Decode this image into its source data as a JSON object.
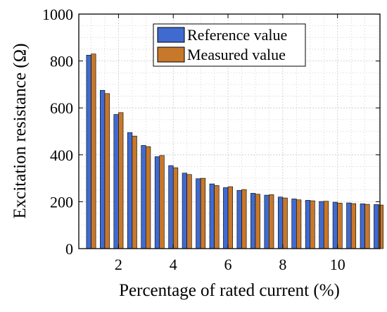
{
  "chart_data": {
    "type": "bar",
    "xlabel": "Percentage of rated current (%)",
    "ylabel": "Excitation resistance (Ω)",
    "x_ticks": [
      "2",
      "4",
      "6",
      "8",
      "10"
    ],
    "y_ticks": [
      "0",
      "200",
      "400",
      "600",
      "800",
      "1000"
    ],
    "xlim": [
      0.55,
      11.55
    ],
    "ylim": [
      0,
      1000
    ],
    "grid": true,
    "legend_position": "top-center",
    "x": [
      1,
      1.5,
      2,
      2.5,
      3,
      3.5,
      4,
      4.5,
      5,
      5.5,
      6,
      6.5,
      7,
      7.5,
      8,
      8.5,
      9,
      9.5,
      10,
      10.5,
      11,
      11.5
    ],
    "series": [
      {
        "name": "Reference value",
        "color": "#3f6bd0",
        "values": [
          825,
          675,
          572,
          495,
          440,
          392,
          354,
          322,
          298,
          276,
          260,
          248,
          236,
          228,
          220,
          212,
          206,
          201,
          198,
          195,
          191,
          188
        ]
      },
      {
        "name": "Measured value",
        "color": "#c8782a",
        "values": [
          830,
          661,
          580,
          480,
          435,
          397,
          345,
          316,
          300,
          269,
          264,
          252,
          232,
          230,
          216,
          208,
          204,
          202,
          194,
          192,
          189,
          186
        ]
      }
    ]
  }
}
